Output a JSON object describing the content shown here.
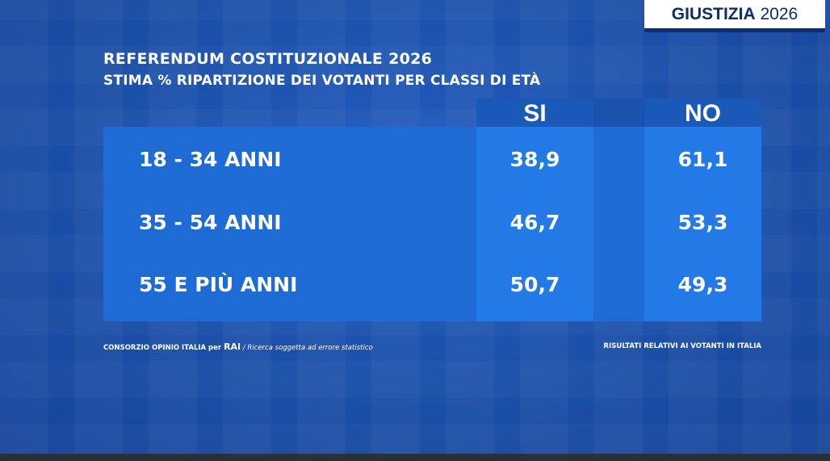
{
  "brand": {
    "word": "GIUSTIZIA",
    "year": "2026"
  },
  "header": {
    "title": "REFERENDUM COSTITUZIONALE 2026",
    "subtitle": "STIMA % RIPARTIZIONE DEI VOTANTI PER CLASSI DI ETÀ"
  },
  "footer": {
    "source_prefix": "CONSORZIO OPINIO ITALIA per ",
    "source_brand": "RAI",
    "source_note": " / Ricerca soggetta ad errore statistico",
    "right_note": "RISULTATI RELATIVI AI VOTANTI IN ITALIA"
  },
  "colors": {
    "background": "#1b4fa8",
    "panel": "#1e6bd6",
    "column_highlight": "#237ae6",
    "column_header": "#1b59b8",
    "brand_text": "#0e2d6e"
  },
  "chart_data": {
    "type": "table",
    "title": "REFERENDUM COSTITUZIONALE 2026",
    "subtitle": "STIMA % RIPARTIZIONE DEI VOTANTI PER CLASSI DI ETÀ",
    "columns": [
      "SI",
      "NO"
    ],
    "rows": [
      {
        "label": "18 - 34 ANNI",
        "values": [
          "38,9",
          "61,1"
        ]
      },
      {
        "label": "35 - 54 ANNI",
        "values": [
          "46,7",
          "53,3"
        ]
      },
      {
        "label": "55 E PIÙ ANNI",
        "values": [
          "50,7",
          "49,3"
        ]
      }
    ],
    "series": [
      {
        "name": "SI",
        "values": [
          38.9,
          46.7,
          50.7
        ]
      },
      {
        "name": "NO",
        "values": [
          61.1,
          53.3,
          49.3
        ]
      }
    ],
    "categories": [
      "18 - 34 ANNI",
      "35 - 54 ANNI",
      "55 E PIÙ ANNI"
    ]
  }
}
